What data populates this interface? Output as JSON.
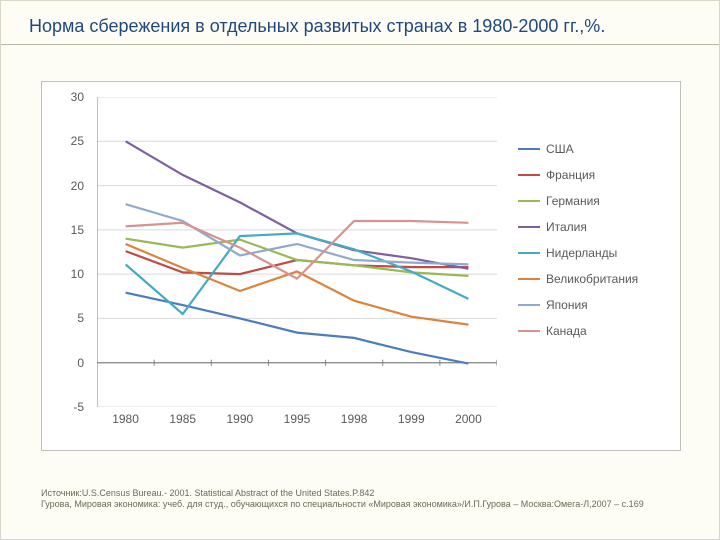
{
  "title": "Норма сбережения в отдельных развитых странах в 1980-2000 гг.,%.",
  "footer_line1": "Источник:U.S.Census Bureau.- 2001. Statistical Abstract of the United States.P.842",
  "footer_line2": "Гурова, Мировая экономика: учеб. для студ., обучающихся по специальности «Мировая экономика»/И.П.Гурова – Москва:Омега-Л,2007 – с.169",
  "chart": {
    "type": "line",
    "background_color": "#ffffff",
    "grid_color": "#d9d9d9",
    "axis_color": "#828282",
    "tick_font_size": 12,
    "tick_color": "#595959",
    "yAxis": {
      "min": -5,
      "max": 30,
      "step": 5
    },
    "xCategories": [
      "1980",
      "1985",
      "1990",
      "1995",
      "1998",
      "1999",
      "2000"
    ],
    "series": [
      {
        "name": "США",
        "color": "#4a7ebb",
        "values": [
          7.9,
          6.5,
          5.0,
          3.4,
          2.8,
          1.2,
          -0.1
        ]
      },
      {
        "name": "Франция",
        "color": "#be4b48",
        "values": [
          12.6,
          10.2,
          10.0,
          11.6,
          11.0,
          10.8,
          10.8
        ]
      },
      {
        "name": "Германия",
        "color": "#98b954",
        "values": [
          14.0,
          13.0,
          13.9,
          11.6,
          11.0,
          10.2,
          9.8
        ]
      },
      {
        "name": "Италия",
        "color": "#7d60a0",
        "values": [
          25.0,
          21.2,
          18.1,
          14.6,
          12.7,
          11.8,
          10.6
        ]
      },
      {
        "name": "Нидерланды",
        "color": "#46aac5",
        "values": [
          11.1,
          5.5,
          14.3,
          14.6,
          12.8,
          10.3,
          7.2
        ]
      },
      {
        "name": "Великобритания",
        "color": "#db843d",
        "values": [
          13.4,
          10.7,
          8.1,
          10.3,
          7.0,
          5.2,
          4.3
        ]
      },
      {
        "name": "Япония",
        "color": "#92a9cf",
        "values": [
          17.9,
          16.0,
          12.1,
          13.4,
          11.6,
          11.3,
          11.1
        ]
      },
      {
        "name": "Канада",
        "color": "#d6938f",
        "values": [
          15.4,
          15.8,
          13.0,
          9.5,
          16.0,
          16.0,
          15.8
        ]
      }
    ],
    "legend_font_size": 12,
    "line_width": 2.2
  }
}
